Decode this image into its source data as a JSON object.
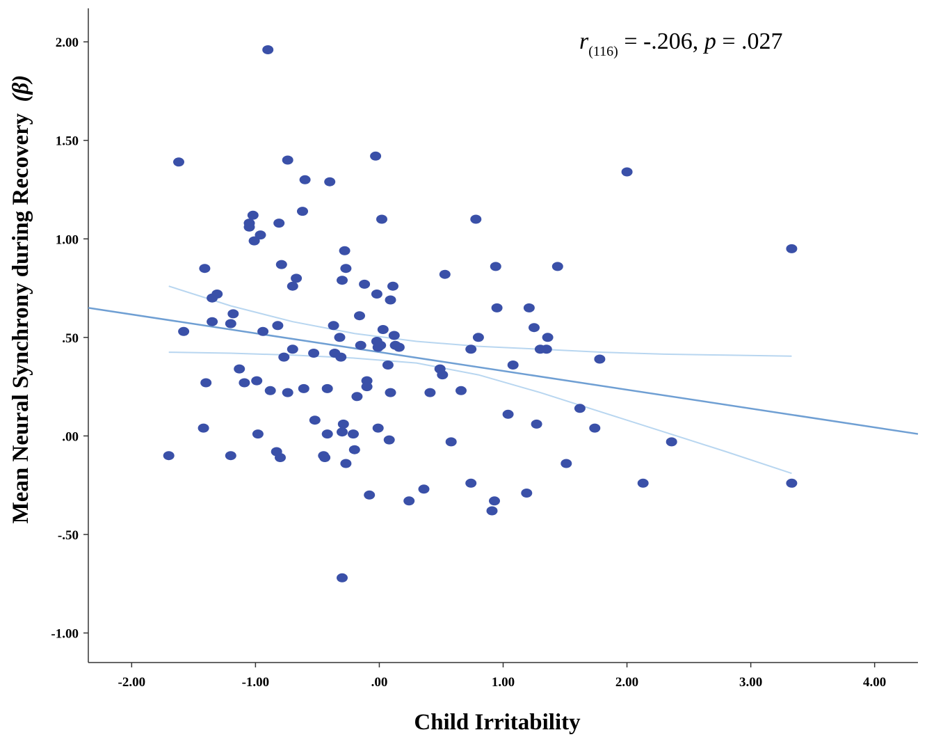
{
  "chart_data": {
    "type": "scatter",
    "xlabel": "Child Irritability",
    "ylabel": "Mean Neural Synchrony during Recovery",
    "ylabel_symbol": "(β)",
    "xlim": [
      -2.35,
      4.35
    ],
    "ylim": [
      -1.15,
      2.17
    ],
    "x_ticks": [
      -2,
      -1,
      0,
      1,
      2,
      3,
      4
    ],
    "x_tick_labels": [
      "-2.00",
      "-1.00",
      ".00",
      "1.00",
      "2.00",
      "3.00",
      "4.00"
    ],
    "y_ticks": [
      2,
      1.5,
      1,
      0.5,
      0,
      -0.5,
      -1
    ],
    "y_tick_labels": [
      "2.00",
      "1.50",
      "1.00",
      ".50",
      ".00",
      "-.50",
      "-1.00"
    ],
    "annotation": {
      "r": "r",
      "df": "(116)",
      "r_value": " = -.206, ",
      "p": "p",
      "p_value": " = .027"
    },
    "colors": {
      "points": "#3a50a8",
      "fit_line": "#6f9fd3",
      "ci_band": "#b8d6f0",
      "axis": "#333333"
    },
    "fit_line": {
      "x": [
        -2.35,
        4.35
      ],
      "y": [
        0.65,
        0.01
      ]
    },
    "ci_upper": {
      "x": [
        -1.7,
        -1.2,
        -0.7,
        -0.2,
        0.3,
        0.8,
        1.3,
        1.8,
        2.3,
        2.8,
        3.33
      ],
      "y": [
        0.76,
        0.66,
        0.58,
        0.52,
        0.48,
        0.455,
        0.44,
        0.425,
        0.415,
        0.41,
        0.405
      ]
    },
    "ci_lower": {
      "x": [
        -1.7,
        -1.2,
        -0.7,
        -0.2,
        0.3,
        0.8,
        1.3,
        1.8,
        2.3,
        2.8,
        3.33
      ],
      "y": [
        0.425,
        0.42,
        0.41,
        0.395,
        0.37,
        0.31,
        0.22,
        0.12,
        0.02,
        -0.08,
        -0.19
      ]
    },
    "points": [
      {
        "x": -1.7,
        "y": -0.1
      },
      {
        "x": -1.62,
        "y": 1.39
      },
      {
        "x": -1.58,
        "y": 0.53
      },
      {
        "x": -1.42,
        "y": 0.04
      },
      {
        "x": -1.41,
        "y": 0.85
      },
      {
        "x": -1.4,
        "y": 0.27
      },
      {
        "x": -1.35,
        "y": 0.58
      },
      {
        "x": -1.35,
        "y": 0.7
      },
      {
        "x": -1.31,
        "y": 0.72
      },
      {
        "x": -1.2,
        "y": -0.1
      },
      {
        "x": -1.2,
        "y": 0.57
      },
      {
        "x": -1.18,
        "y": 0.62
      },
      {
        "x": -1.13,
        "y": 0.34
      },
      {
        "x": -1.09,
        "y": 0.27
      },
      {
        "x": -1.05,
        "y": 1.08
      },
      {
        "x": -1.05,
        "y": 1.06
      },
      {
        "x": -1.02,
        "y": 1.12
      },
      {
        "x": -1.01,
        "y": 0.99
      },
      {
        "x": -0.99,
        "y": 0.28
      },
      {
        "x": -0.98,
        "y": 0.01
      },
      {
        "x": -0.96,
        "y": 1.02
      },
      {
        "x": -0.94,
        "y": 0.53
      },
      {
        "x": -0.9,
        "y": 1.96
      },
      {
        "x": -0.88,
        "y": 0.23
      },
      {
        "x": -0.83,
        "y": -0.08
      },
      {
        "x": -0.82,
        "y": 0.56
      },
      {
        "x": -0.81,
        "y": 1.08
      },
      {
        "x": -0.8,
        "y": -0.11
      },
      {
        "x": -0.79,
        "y": 0.87
      },
      {
        "x": -0.77,
        "y": 0.4
      },
      {
        "x": -0.74,
        "y": 1.4
      },
      {
        "x": -0.74,
        "y": 0.22
      },
      {
        "x": -0.7,
        "y": 0.44
      },
      {
        "x": -0.7,
        "y": 0.76
      },
      {
        "x": -0.67,
        "y": 0.8
      },
      {
        "x": -0.62,
        "y": 1.14
      },
      {
        "x": -0.61,
        "y": 0.24
      },
      {
        "x": -0.6,
        "y": 1.3
      },
      {
        "x": -0.53,
        "y": 0.42
      },
      {
        "x": -0.52,
        "y": 0.08
      },
      {
        "x": -0.45,
        "y": -0.1
      },
      {
        "x": -0.44,
        "y": -0.11
      },
      {
        "x": -0.42,
        "y": 0.24
      },
      {
        "x": -0.42,
        "y": 0.01
      },
      {
        "x": -0.4,
        "y": 1.29
      },
      {
        "x": -0.37,
        "y": 0.56
      },
      {
        "x": -0.36,
        "y": 0.42
      },
      {
        "x": -0.32,
        "y": 0.5
      },
      {
        "x": -0.31,
        "y": 0.4
      },
      {
        "x": -0.3,
        "y": 0.79
      },
      {
        "x": -0.3,
        "y": 0.02
      },
      {
        "x": -0.3,
        "y": -0.72
      },
      {
        "x": -0.29,
        "y": 0.06
      },
      {
        "x": -0.28,
        "y": 0.94
      },
      {
        "x": -0.27,
        "y": -0.14
      },
      {
        "x": -0.27,
        "y": 0.85
      },
      {
        "x": -0.21,
        "y": 0.01
      },
      {
        "x": -0.2,
        "y": -0.07
      },
      {
        "x": -0.18,
        "y": 0.2
      },
      {
        "x": -0.16,
        "y": 0.61
      },
      {
        "x": -0.15,
        "y": 0.46
      },
      {
        "x": -0.12,
        "y": 0.77
      },
      {
        "x": -0.1,
        "y": 0.28
      },
      {
        "x": -0.1,
        "y": 0.25
      },
      {
        "x": -0.08,
        "y": -0.3
      },
      {
        "x": -0.03,
        "y": 1.42
      },
      {
        "x": -0.02,
        "y": 0.48
      },
      {
        "x": -0.02,
        "y": 0.72
      },
      {
        "x": -0.01,
        "y": 0.45
      },
      {
        "x": -0.01,
        "y": 0.04
      },
      {
        "x": 0.01,
        "y": 0.46
      },
      {
        "x": 0.02,
        "y": 1.1
      },
      {
        "x": 0.03,
        "y": 0.54
      },
      {
        "x": 0.07,
        "y": 0.36
      },
      {
        "x": 0.08,
        "y": -0.02
      },
      {
        "x": 0.09,
        "y": 0.22
      },
      {
        "x": 0.09,
        "y": 0.69
      },
      {
        "x": 0.11,
        "y": 0.76
      },
      {
        "x": 0.12,
        "y": 0.51
      },
      {
        "x": 0.13,
        "y": 0.46
      },
      {
        "x": 0.16,
        "y": 0.45
      },
      {
        "x": 0.24,
        "y": -0.33
      },
      {
        "x": 0.36,
        "y": -0.27
      },
      {
        "x": 0.41,
        "y": 0.22
      },
      {
        "x": 0.49,
        "y": 0.34
      },
      {
        "x": 0.51,
        "y": 0.31
      },
      {
        "x": 0.53,
        "y": 0.82
      },
      {
        "x": 0.58,
        "y": -0.03
      },
      {
        "x": 0.66,
        "y": 0.23
      },
      {
        "x": 0.74,
        "y": 0.44
      },
      {
        "x": 0.74,
        "y": -0.24
      },
      {
        "x": 0.78,
        "y": 1.1
      },
      {
        "x": 0.8,
        "y": 0.5
      },
      {
        "x": 0.91,
        "y": -0.38
      },
      {
        "x": 0.93,
        "y": -0.33
      },
      {
        "x": 0.94,
        "y": 0.86
      },
      {
        "x": 0.95,
        "y": 0.65
      },
      {
        "x": 1.04,
        "y": 0.11
      },
      {
        "x": 1.08,
        "y": 0.36
      },
      {
        "x": 1.19,
        "y": -0.29
      },
      {
        "x": 1.21,
        "y": 0.65
      },
      {
        "x": 1.25,
        "y": 0.55
      },
      {
        "x": 1.27,
        "y": 0.06
      },
      {
        "x": 1.3,
        "y": 0.44
      },
      {
        "x": 1.35,
        "y": 0.44
      },
      {
        "x": 1.36,
        "y": 0.5
      },
      {
        "x": 1.44,
        "y": 0.86
      },
      {
        "x": 1.51,
        "y": -0.14
      },
      {
        "x": 1.62,
        "y": 0.14
      },
      {
        "x": 1.74,
        "y": 0.04
      },
      {
        "x": 1.78,
        "y": 0.39
      },
      {
        "x": 2.0,
        "y": 1.34
      },
      {
        "x": 2.13,
        "y": -0.24
      },
      {
        "x": 2.36,
        "y": -0.03
      },
      {
        "x": 3.33,
        "y": 0.95
      },
      {
        "x": 3.33,
        "y": -0.24
      }
    ]
  }
}
